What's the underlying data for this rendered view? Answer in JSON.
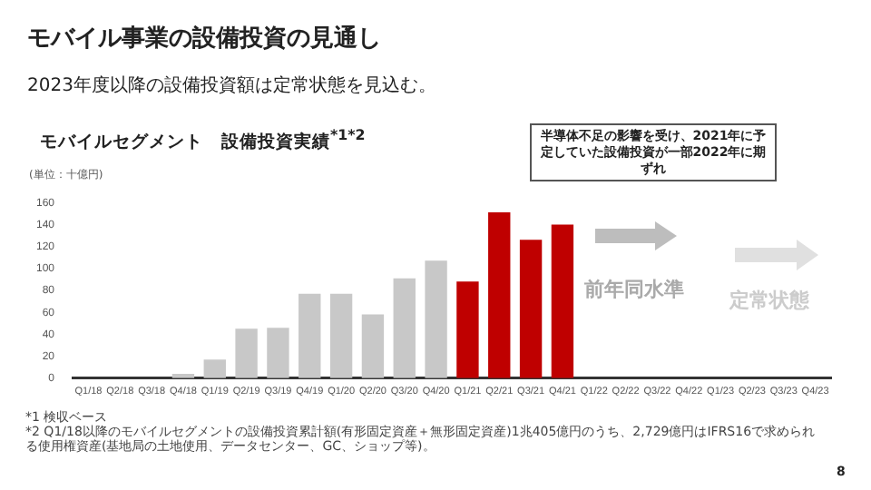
{
  "chart_data": {
    "type": "bar",
    "title": "モバイル事業の設備投資の見通し",
    "subtitle": "2023年度以降の設備投資額は定常状態を見込む。",
    "ylabel": "(単位：十億円)",
    "categories": [
      "Q1/18",
      "Q2/18",
      "Q3/18",
      "Q4/18",
      "Q1/19",
      "Q2/19",
      "Q3/19",
      "Q4/19",
      "Q1/20",
      "Q2/20",
      "Q3/20",
      "Q4/20",
      "Q1/21",
      "Q2/21",
      "Q3/21",
      "Q4/21",
      "Q1/22",
      "Q2/22",
      "Q3/22",
      "Q4/22",
      "Q1/23",
      "Q2/23",
      "Q3/23",
      "Q4/23"
    ],
    "values": [
      0,
      0,
      0,
      4,
      17,
      45,
      46,
      77,
      77,
      58,
      91,
      107,
      88,
      151,
      126,
      140,
      null,
      null,
      null,
      null,
      null,
      null,
      null,
      null
    ],
    "colors": [
      "#c8c8c8",
      "#c8c8c8",
      "#c8c8c8",
      "#c8c8c8",
      "#c8c8c8",
      "#c8c8c8",
      "#c8c8c8",
      "#c8c8c8",
      "#c8c8c8",
      "#c8c8c8",
      "#c8c8c8",
      "#c8c8c8",
      "#bf0000",
      "#bf0000",
      "#bf0000",
      "#bf0000",
      "#c8c8c8",
      "#c8c8c8",
      "#c8c8c8",
      "#c8c8c8",
      "#c8c8c8",
      "#c8c8c8",
      "#c8c8c8",
      "#c8c8c8"
    ],
    "ylim": [
      0,
      160
    ],
    "yticks": [
      0,
      20,
      40,
      60,
      80,
      100,
      120,
      140,
      160
    ],
    "legend": false,
    "annotations": [
      "モバイルセグメント　設備投資実績$^{*1*2}$",
      "半導体不足の影響を受け、2021年に予定していた設備投資が一部2022年に期ずれ",
      "前年同水準",
      "定常状態",
      "*1 検収ベース",
      "*2 Q1/18以降のモバイルセグメントの設備投資累計額(有形固定資産＋無形固定資産)1兆405億円のうち、2,729億円はIFRS16で求められる使用権資産(基地局の土地使用、データセンター、GC、ショップ等)。",
      "8"
    ]
  }
}
